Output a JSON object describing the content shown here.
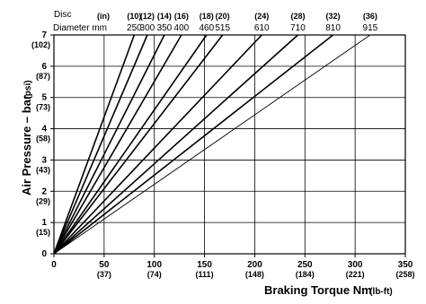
{
  "chart_data": {
    "type": "line",
    "header": {
      "disc_label": "Disc",
      "disc_unit": "(in)",
      "diameter_label": "Diameter mm"
    },
    "xlabel": "Braking Torque Nm",
    "xlabel_unit": "(lb-ft)",
    "ylabel": "Air Pressure – bar",
    "ylabel_unit": "(psi)",
    "xlim": [
      0,
      350
    ],
    "ylim": [
      0,
      7
    ],
    "x_ticks": [
      {
        "value": 0,
        "label": "0",
        "sub": ""
      },
      {
        "value": 50,
        "label": "50",
        "sub": "(37)"
      },
      {
        "value": 100,
        "label": "100",
        "sub": "(74)"
      },
      {
        "value": 150,
        "label": "150",
        "sub": "(111)"
      },
      {
        "value": 200,
        "label": "200",
        "sub": "(148)"
      },
      {
        "value": 250,
        "label": "250",
        "sub": "(184)"
      },
      {
        "value": 300,
        "label": "300",
        "sub": "(221)"
      },
      {
        "value": 350,
        "label": "350",
        "sub": "(258)"
      }
    ],
    "y_ticks": [
      {
        "value": 0,
        "label": "0",
        "sub": ""
      },
      {
        "value": 1,
        "label": "1",
        "sub": "(15)"
      },
      {
        "value": 2,
        "label": "2",
        "sub": "(29)"
      },
      {
        "value": 3,
        "label": "3",
        "sub": "(43)"
      },
      {
        "value": 4,
        "label": "4",
        "sub": "(58)"
      },
      {
        "value": 5,
        "label": "5",
        "sub": "(73)"
      },
      {
        "value": 6,
        "label": "6",
        "sub": "(87)"
      },
      {
        "value": 7,
        "label": "7",
        "sub": "(102)"
      }
    ],
    "series": [
      {
        "disc": "(10)",
        "diameter": "250",
        "x_at_top": 80
      },
      {
        "disc": "(12)",
        "diameter": "300",
        "x_at_top": 93
      },
      {
        "disc": "(14)",
        "diameter": "350",
        "x_at_top": 110
      },
      {
        "disc": "(16)",
        "diameter": "400",
        "x_at_top": 127
      },
      {
        "disc": "(18)",
        "diameter": "460",
        "x_at_top": 152
      },
      {
        "disc": "(20)",
        "diameter": "515",
        "x_at_top": 168
      },
      {
        "disc": "(24)",
        "diameter": "610",
        "x_at_top": 207
      },
      {
        "disc": "(28)",
        "diameter": "710",
        "x_at_top": 243
      },
      {
        "disc": "(32)",
        "diameter": "810",
        "x_at_top": 278
      },
      {
        "disc": "(36)",
        "diameter": "915",
        "x_at_top": 315
      }
    ],
    "grid": true
  }
}
